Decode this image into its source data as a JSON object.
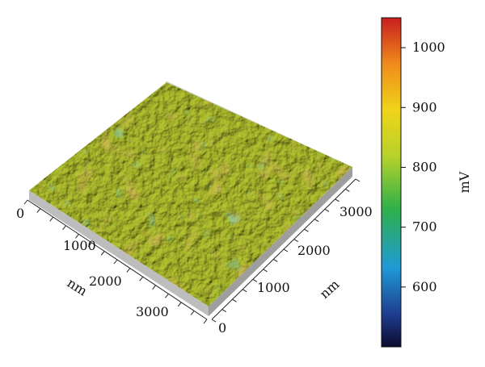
{
  "figure": {
    "x_axis": {
      "unit": "nm",
      "ticks": [
        "0",
        "1000",
        "2000",
        "3000"
      ]
    },
    "y_axis": {
      "unit": "nm",
      "ticks": [
        "0",
        "1000",
        "2000",
        "3000"
      ]
    },
    "colorbar": {
      "unit": "mV",
      "ticks": [
        "1000",
        "900",
        "800",
        "700",
        "600"
      ],
      "min": 500,
      "max": 1050,
      "colors": [
        "#0b0b2e",
        "#1f3d8f",
        "#1f9ad6",
        "#2fb04a",
        "#b7d22a",
        "#f0d419",
        "#f08a1c",
        "#c81e1e"
      ]
    },
    "surface_colors": {
      "base": "#b5c431",
      "highlight": "#e3e06a",
      "shadow": "#6b7d1c",
      "warm": "#c9772a",
      "cool": "#3aa8a0"
    }
  }
}
